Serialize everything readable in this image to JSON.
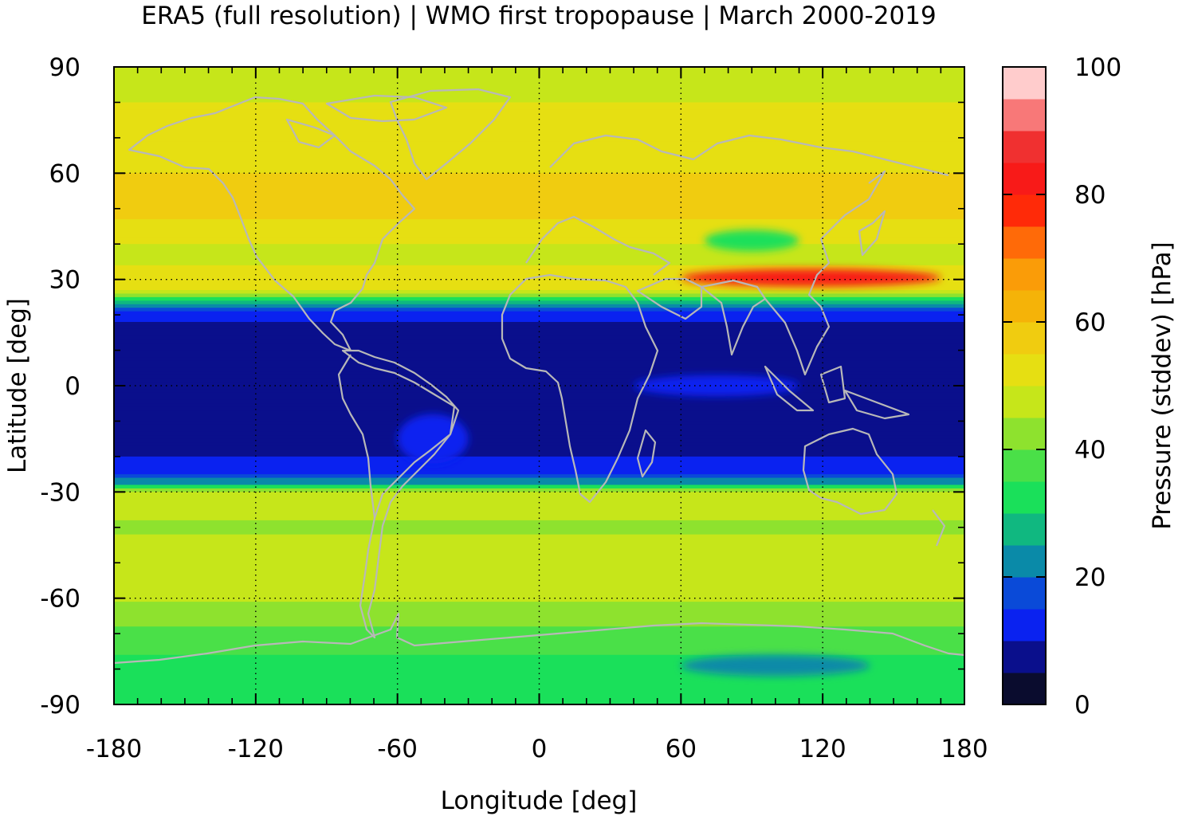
{
  "title": "ERA5 (full resolution) | WMO first tropopause | March 2000-2019",
  "map": {
    "xlabel": "Longitude [deg]",
    "ylabel": "Latitude [deg]",
    "xlim": [
      -180,
      180
    ],
    "ylim": [
      -90,
      90
    ],
    "xticks": [
      "-180",
      "-120",
      "-60",
      "0",
      "60",
      "120",
      "180"
    ],
    "yticks": [
      "90",
      "60",
      "30",
      "0",
      "-30",
      "-60",
      "-90"
    ],
    "grid": "dotted",
    "coastline_color": "#b8b8b8"
  },
  "colorbar": {
    "label": "Pressure (stddev) [hPa]",
    "range": [
      0,
      100
    ],
    "ticks": [
      "0",
      "20",
      "40",
      "60",
      "80",
      "100"
    ],
    "levels": [
      "#0a0c2e",
      "#0a0f8c",
      "#0a22f0",
      "#0a4ad8",
      "#0a8aa8",
      "#10b880",
      "#1ae05a",
      "#4ae048",
      "#8ee22e",
      "#c6e61a",
      "#e6df12",
      "#f0cc10",
      "#f5b308",
      "#fa9c08",
      "#ff6a08",
      "#ff2a08",
      "#f81a18",
      "#f03030",
      "#f87878",
      "#ffcccc"
    ]
  },
  "chart_data": {
    "type": "heatmap",
    "title": "ERA5 (full resolution) | WMO first tropopause | March 2000-2019",
    "xlabel": "Longitude [deg]",
    "ylabel": "Latitude [deg]",
    "xlim": [
      -180,
      180
    ],
    "ylim": [
      -90,
      90
    ],
    "zlabel": "Pressure (stddev) [hPa]",
    "zlim": [
      0,
      100
    ],
    "zonal_profile": {
      "lat": [
        90,
        80,
        70,
        60,
        50,
        40,
        35,
        30,
        27,
        24,
        21,
        18,
        15,
        10,
        0,
        -10,
        -20,
        -25,
        -28,
        -30,
        -33,
        -40,
        -50,
        -60,
        -70,
        -80,
        -90
      ],
      "stddev": [
        45,
        50,
        52,
        55,
        57,
        50,
        48,
        55,
        52,
        30,
        15,
        10,
        7,
        6,
        6,
        8,
        10,
        15,
        25,
        45,
        47,
        44,
        50,
        46,
        38,
        33,
        32
      ]
    },
    "features": [
      {
        "lon_range": [
          60,
          170
        ],
        "lat_range": [
          28,
          33
        ],
        "stddev": 80
      },
      {
        "lon_range": [
          70,
          110
        ],
        "lat_range": [
          38,
          44
        ],
        "stddev": 32
      },
      {
        "lon_range": [
          40,
          110
        ],
        "lat_range": [
          -3,
          3
        ],
        "stddev": 11
      },
      {
        "lon_range": [
          -60,
          -30
        ],
        "lat_range": [
          -22,
          -8
        ],
        "stddev": 11
      },
      {
        "lon_range": [
          60,
          140
        ],
        "lat_range": [
          -82,
          -76
        ],
        "stddev": 22
      }
    ]
  }
}
